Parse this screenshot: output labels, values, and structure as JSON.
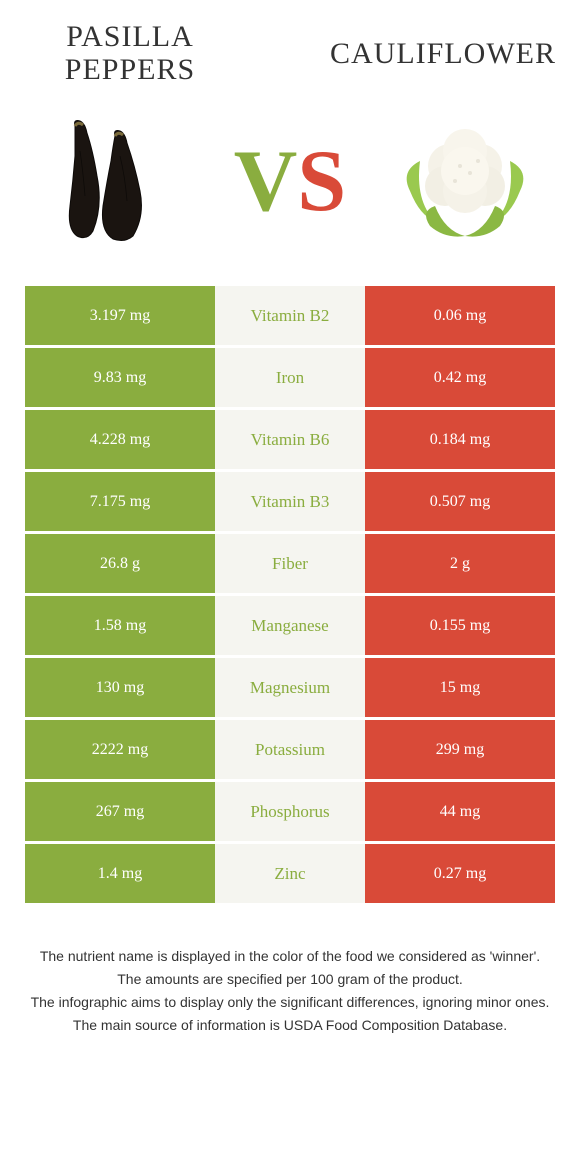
{
  "header": {
    "left_title": "Pasilla peppers",
    "right_title": "Cauliflower",
    "vs_v": "V",
    "vs_s": "S"
  },
  "colors": {
    "left_bg": "#8aad3f",
    "right_bg": "#d94a38",
    "mid_bg": "#f5f5f0",
    "nutrient_text": "#8aad3f",
    "value_text": "#ffffff"
  },
  "rows": [
    {
      "left": "3.197 mg",
      "mid": "Vitamin B2",
      "right": "0.06 mg"
    },
    {
      "left": "9.83 mg",
      "mid": "Iron",
      "right": "0.42 mg"
    },
    {
      "left": "4.228 mg",
      "mid": "Vitamin B6",
      "right": "0.184 mg"
    },
    {
      "left": "7.175 mg",
      "mid": "Vitamin B3",
      "right": "0.507 mg"
    },
    {
      "left": "26.8 g",
      "mid": "Fiber",
      "right": "2 g"
    },
    {
      "left": "1.58 mg",
      "mid": "Manganese",
      "right": "0.155 mg"
    },
    {
      "left": "130 mg",
      "mid": "Magnesium",
      "right": "15 mg"
    },
    {
      "left": "2222 mg",
      "mid": "Potassium",
      "right": "299 mg"
    },
    {
      "left": "267 mg",
      "mid": "Phosphorus",
      "right": "44 mg"
    },
    {
      "left": "1.4 mg",
      "mid": "Zinc",
      "right": "0.27 mg"
    }
  ],
  "footer": {
    "line1": "The nutrient name is displayed in the color of the food we considered as 'winner'.",
    "line2": "The amounts are specified per 100 gram of the product.",
    "line3": "The infographic aims to display only the significant differences, ignoring minor ones.",
    "line4": "The main source of information is USDA Food Composition Database."
  }
}
